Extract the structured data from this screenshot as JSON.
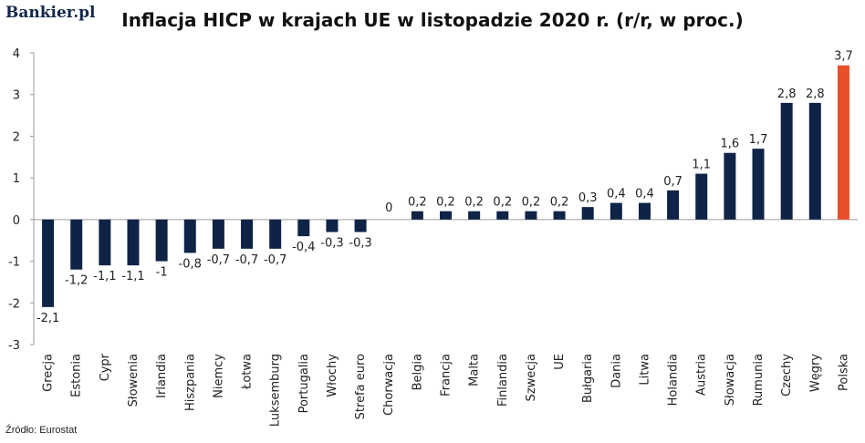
{
  "brand": "Bankier.pl",
  "source": "Źródło: Eurostat",
  "chart_data": {
    "type": "bar",
    "title": "Inflacja HICP w krajach UE w listopadzie 2020 r. (r/r, w proc.)",
    "xlabel": "",
    "ylabel": "",
    "ylim": [
      -3,
      4
    ],
    "yticks": [
      4,
      3,
      2,
      1,
      0,
      -1,
      -2,
      -3
    ],
    "grid": false,
    "categories": [
      "Grecja",
      "Estonia",
      "Cypr",
      "Słowenia",
      "Irlandia",
      "Hiszpania",
      "Niemcy",
      "Łotwa",
      "Luksemburg",
      "Portugalia",
      "Włochy",
      "Strefa euro",
      "Chorwacja",
      "Belgia",
      "Francja",
      "Malta",
      "Finlandia",
      "Szwecja",
      "UE",
      "Bułgaria",
      "Dania",
      "Litwa",
      "Holandia",
      "Austria",
      "Słowacja",
      "Rumunia",
      "Czechy",
      "Węgry",
      "Polska"
    ],
    "values": [
      -2.1,
      -1.2,
      -1.1,
      -1.1,
      -1,
      -0.8,
      -0.7,
      -0.7,
      -0.7,
      -0.4,
      -0.3,
      -0.3,
      0,
      0.2,
      0.2,
      0.2,
      0.2,
      0.2,
      0.2,
      0.3,
      0.4,
      0.4,
      0.7,
      1.1,
      1.6,
      1.7,
      2.8,
      2.8,
      3.7
    ],
    "labels": [
      "-2,1",
      "-1,2",
      "-1,1",
      "-1,1",
      "-1",
      "-0,8",
      "-0,7",
      "-0,7",
      "-0,7",
      "-0,4",
      "-0,3",
      "-0,3",
      "0",
      "0,2",
      "0,2",
      "0,2",
      "0,2",
      "0,2",
      "0,2",
      "0,3",
      "0,4",
      "0,4",
      "0,7",
      "1,1",
      "1,6",
      "1,7",
      "2,8",
      "2,8",
      "3,7"
    ],
    "colors": {
      "default": "#0f2347",
      "highlight": "#e8502a",
      "highlight_category": "Polska"
    }
  }
}
